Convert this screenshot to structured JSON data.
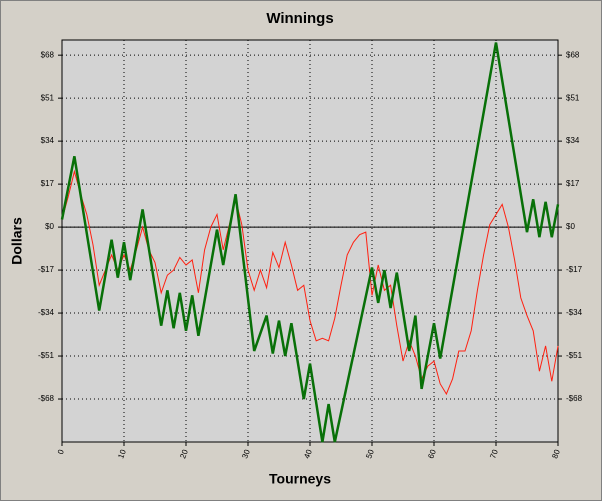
{
  "chart_data": {
    "type": "line",
    "title": "Winnings",
    "x_label": "Tourneys",
    "y_label": "Dollars",
    "xlim": [
      0,
      80
    ],
    "xticks": [
      0,
      10,
      20,
      30,
      40,
      50,
      60,
      70,
      80
    ],
    "ylim": [
      -85,
      74
    ],
    "yticks": [
      {
        "value": 68,
        "label": "$68"
      },
      {
        "value": 51,
        "label": "$51"
      },
      {
        "value": 34,
        "label": "$34"
      },
      {
        "value": 17,
        "label": "$17"
      },
      {
        "value": 0,
        "label": "$0"
      },
      {
        "value": -17,
        "label": "-$17"
      },
      {
        "value": -34,
        "label": "-$34"
      },
      {
        "value": -51,
        "label": "-$51"
      },
      {
        "value": -68,
        "label": "-$68"
      }
    ],
    "y2lim": [
      -85,
      74
    ],
    "y2ticks": [
      {
        "value": 68,
        "label": "$68"
      },
      {
        "value": 51,
        "label": "$51"
      },
      {
        "value": 34,
        "label": "$34"
      },
      {
        "value": 17,
        "label": "$17"
      },
      {
        "value": 0,
        "label": "$0"
      },
      {
        "value": -17,
        "label": "-$17"
      },
      {
        "value": -34,
        "label": "-$34"
      },
      {
        "value": -51,
        "label": "-$51"
      },
      {
        "value": -68,
        "label": "-$68"
      }
    ],
    "grid": true,
    "zero_line": true,
    "series": [
      {
        "color": "#ff2010",
        "width": 1,
        "x": [
          0,
          1,
          2,
          3,
          4,
          5,
          6,
          7,
          8,
          9,
          10,
          11,
          12,
          13,
          14,
          15,
          16,
          17,
          18,
          19,
          20,
          21,
          22,
          23,
          24,
          25,
          26,
          27,
          28,
          29,
          30,
          31,
          32,
          33,
          34,
          35,
          36,
          37,
          38,
          39,
          40,
          41,
          42,
          43,
          44,
          45,
          46,
          47,
          48,
          49,
          50,
          51,
          52,
          53,
          54,
          55,
          56,
          57,
          58,
          59,
          60,
          61,
          62,
          63,
          64,
          65,
          66,
          67,
          68,
          69,
          70,
          71,
          72,
          73,
          74,
          75,
          76,
          77,
          78,
          79,
          80
        ],
        "values": [
          3,
          12,
          22,
          13,
          5,
          -7,
          -23,
          -17,
          -11,
          -17,
          -11,
          -17,
          -9,
          0,
          -9,
          -14,
          -26,
          -19,
          -17,
          -12,
          -15,
          -13,
          -26,
          -9,
          0,
          5,
          -9,
          1,
          11,
          1,
          -17,
          -25,
          -17,
          -24,
          -10,
          -16,
          -6,
          -15,
          -25,
          -23,
          -37,
          -45,
          -44,
          -45,
          -36,
          -23,
          -11,
          -6,
          -3,
          -2,
          -27,
          -15,
          -25,
          -23,
          -39,
          -53,
          -45,
          -51,
          -60,
          -55,
          -53,
          -62,
          -66,
          -60,
          -49,
          -49,
          -41,
          -25,
          -11,
          1,
          5,
          9,
          0,
          -13,
          -28,
          -35,
          -41,
          -57,
          -47,
          -61,
          -47
        ]
      },
      {
        "color": "#087008",
        "width": 2.5,
        "x": [
          0,
          2,
          6,
          8,
          9,
          10,
          11,
          13,
          16,
          17,
          18,
          19,
          20,
          21,
          22,
          25,
          26,
          28,
          31,
          33,
          34,
          35,
          36,
          37,
          39,
          40,
          42,
          43,
          44,
          50,
          51,
          52,
          53,
          54,
          56,
          57,
          58,
          60,
          61,
          70,
          75,
          76,
          77,
          78,
          79,
          80
        ],
        "values": [
          3,
          28,
          -33,
          -5,
          -20,
          -6,
          -21,
          7,
          -39,
          -25,
          -40,
          -26,
          -41,
          -27,
          -43,
          -1,
          -15,
          13,
          -49,
          -35,
          -50,
          -37,
          -51,
          -38,
          -68,
          -54,
          -85,
          -70,
          -85,
          -16,
          -30,
          -17,
          -32,
          -18,
          -49,
          -35,
          -64,
          -38,
          -52,
          73,
          -2,
          11,
          -4,
          10,
          -4,
          9
        ]
      }
    ]
  }
}
